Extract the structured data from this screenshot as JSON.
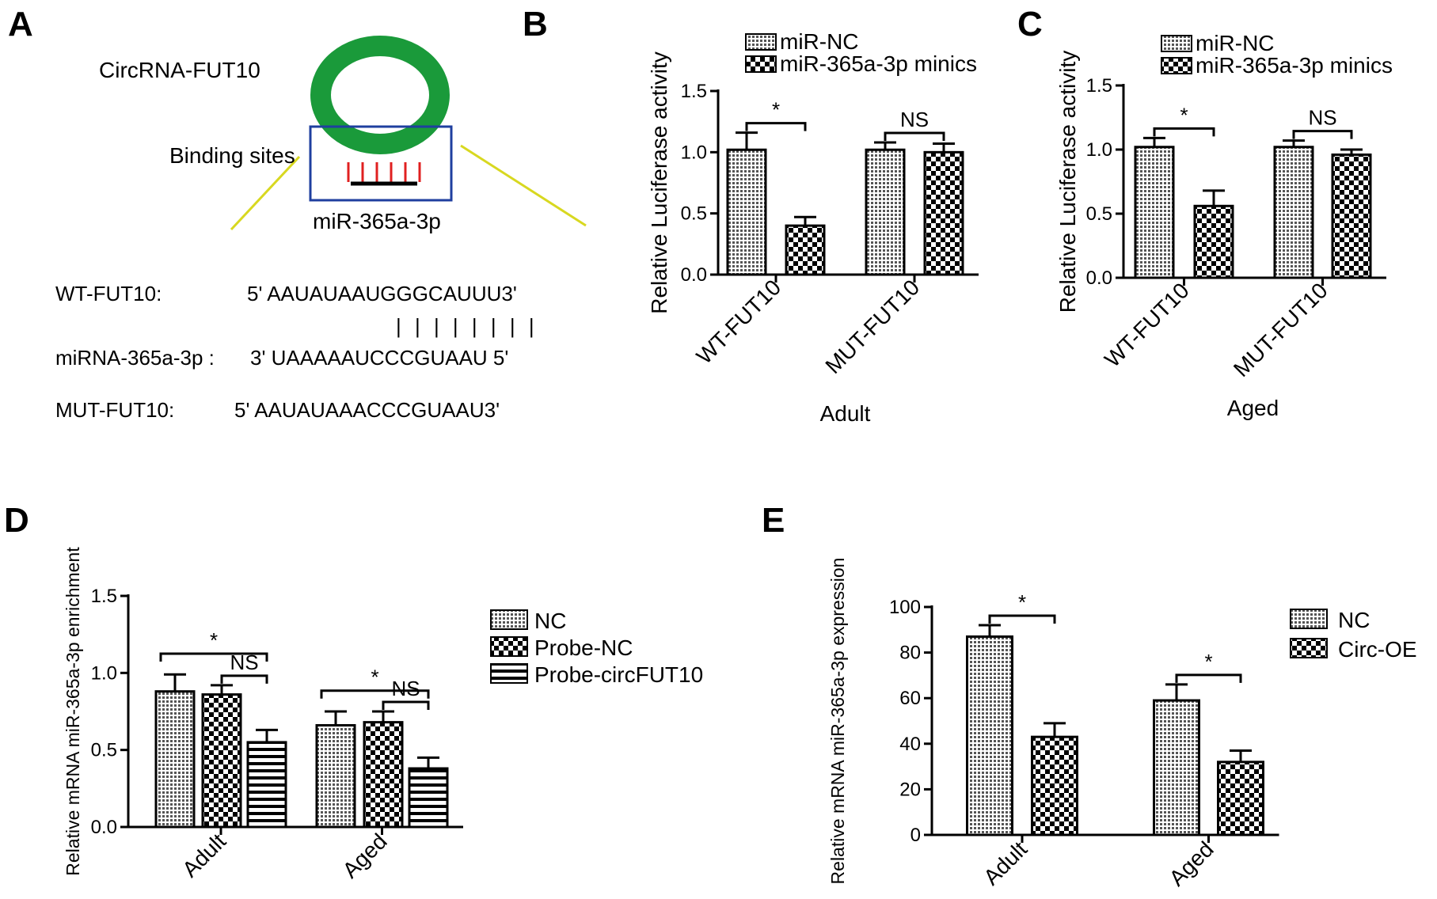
{
  "panel_labels": {
    "a": "A",
    "b": "B",
    "c": "C",
    "d": "D",
    "e": "E"
  },
  "diagram": {
    "circrna_label": "CircRNA-FUT10",
    "binding_label": "Binding sites",
    "mirna_label": "miR-365a-3p",
    "ring_color": "#1a9a3a",
    "box_color": "#1f3f9f",
    "site_color": "#e02020",
    "zoom_line_color": "#d8d820",
    "seq_rows": [
      {
        "name": "WT-FUT10:",
        "seq": "5' AAUAUAAUGGGCAUUU3'"
      },
      {
        "name": "",
        "seq": "| | | | | | | |"
      },
      {
        "name": "miRNA-365a-3p :",
        "seq": "3' UAAAAAUCCCGUAAU 5'"
      },
      {
        "name": "MUT-FUT10:",
        "seq": "5' AAUAUAAACCCGUAAU3'"
      }
    ]
  },
  "chart_data": [
    {
      "panel": "B",
      "type": "bar",
      "title": "",
      "xlabel": "Adult",
      "ylabel": "Relative Luciferase activity",
      "ylim": [
        0,
        1.5
      ],
      "yticks": [
        "0.0",
        "0.5",
        "1.0",
        "1.5"
      ],
      "categories": [
        "WT-FUT10",
        "MUT-FUT10"
      ],
      "series": [
        {
          "name": "miR-NC",
          "values": [
            1.02,
            1.02
          ],
          "errors": [
            0.14,
            0.06
          ],
          "pattern": "fine"
        },
        {
          "name": "miR-365a-3p minics",
          "values": [
            0.4,
            1.0
          ],
          "errors": [
            0.07,
            0.07
          ],
          "pattern": "check"
        }
      ],
      "annotations": [
        {
          "text": "*",
          "between": [
            0,
            0,
            0,
            1
          ]
        },
        {
          "text": "NS",
          "between": [
            1,
            0,
            1,
            1
          ]
        }
      ],
      "legend": "top"
    },
    {
      "panel": "C",
      "type": "bar",
      "title": "",
      "xlabel": "Aged",
      "ylabel": "Relative Luciferase activity",
      "ylim": [
        0,
        1.5
      ],
      "yticks": [
        "0.0",
        "0.5",
        "1.0",
        "1.5"
      ],
      "categories": [
        "WT-FUT10",
        "MUT-FUT10"
      ],
      "series": [
        {
          "name": "miR-NC",
          "values": [
            1.02,
            1.02
          ],
          "errors": [
            0.07,
            0.05
          ],
          "pattern": "fine"
        },
        {
          "name": "miR-365a-3p minics",
          "values": [
            0.56,
            0.96
          ],
          "errors": [
            0.12,
            0.04
          ],
          "pattern": "check"
        }
      ],
      "annotations": [
        {
          "text": "*",
          "between": [
            0,
            0,
            0,
            1
          ]
        },
        {
          "text": "NS",
          "between": [
            1,
            0,
            1,
            1
          ]
        }
      ],
      "legend": "top"
    },
    {
      "panel": "D",
      "type": "bar",
      "title": "",
      "xlabel": "",
      "ylabel": "Relative mRNA miR-365a-3p enrichment",
      "ylim": [
        0,
        1.5
      ],
      "yticks": [
        "0.0",
        "0.5",
        "1.0",
        "1.5"
      ],
      "categories": [
        "Adult",
        "Aged"
      ],
      "series": [
        {
          "name": "NC",
          "values": [
            0.88,
            0.66
          ],
          "errors": [
            0.11,
            0.09
          ],
          "pattern": "fine"
        },
        {
          "name": "Probe-NC",
          "values": [
            0.86,
            0.68
          ],
          "errors": [
            0.06,
            0.07
          ],
          "pattern": "check"
        },
        {
          "name": "Probe-circFUT10",
          "values": [
            0.55,
            0.38
          ],
          "errors": [
            0.08,
            0.07
          ],
          "pattern": "stripe"
        }
      ],
      "annotations": [
        {
          "text": "*",
          "between": [
            0,
            0,
            0,
            2
          ]
        },
        {
          "text": "NS",
          "between": [
            0,
            1,
            0,
            2
          ]
        },
        {
          "text": "*",
          "between": [
            1,
            0,
            1,
            2
          ]
        },
        {
          "text": "NS",
          "between": [
            1,
            1,
            1,
            2
          ]
        }
      ],
      "legend": "right"
    },
    {
      "panel": "E",
      "type": "bar",
      "title": "",
      "xlabel": "",
      "ylabel": "Relative mRNA miR-365a-3p expression",
      "ylim": [
        0,
        100
      ],
      "yticks": [
        "0",
        "20",
        "40",
        "60",
        "80",
        "100"
      ],
      "categories": [
        "Adult",
        "Aged"
      ],
      "series": [
        {
          "name": "NC",
          "values": [
            87,
            59
          ],
          "errors": [
            5,
            7
          ],
          "pattern": "fine"
        },
        {
          "name": "Circ-OE",
          "values": [
            43,
            32
          ],
          "errors": [
            6,
            5
          ],
          "pattern": "check"
        }
      ],
      "annotations": [
        {
          "text": "*",
          "between": [
            0,
            0,
            0,
            1
          ]
        },
        {
          "text": "*",
          "between": [
            1,
            0,
            1,
            1
          ]
        }
      ],
      "legend": "right"
    }
  ]
}
